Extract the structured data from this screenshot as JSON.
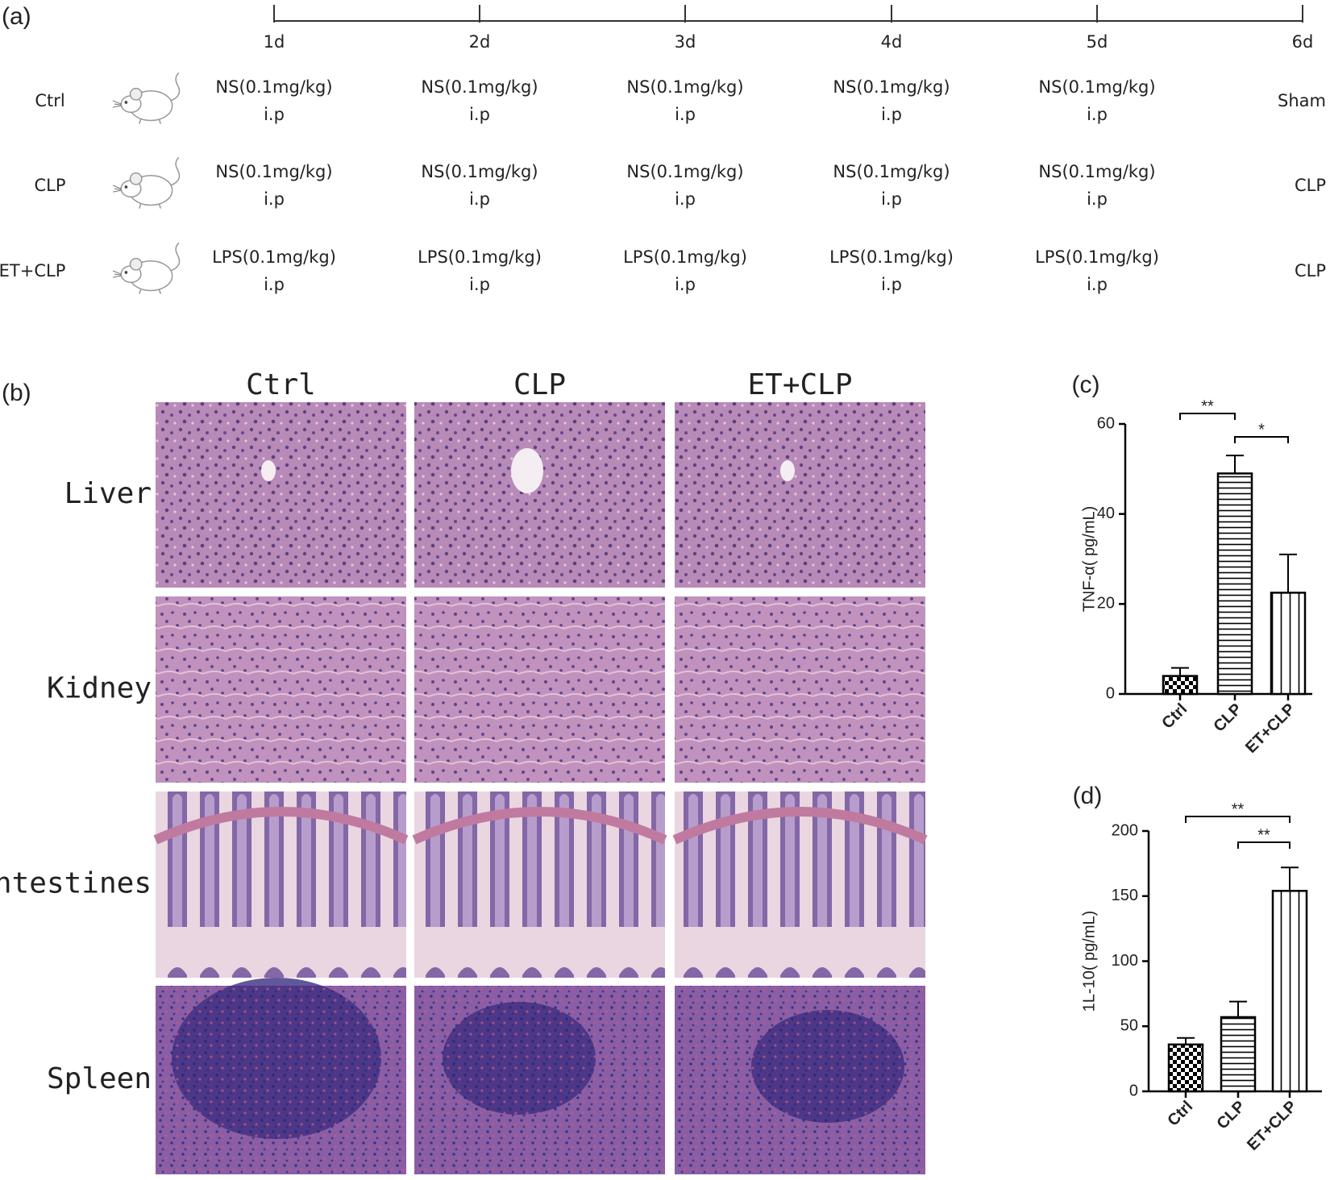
{
  "panel_a": {
    "label": "(a)",
    "days": [
      "1d",
      "2d",
      "3d",
      "4d",
      "5d",
      "6d"
    ],
    "groups": [
      {
        "name": "Ctrl",
        "doses": [
          "NS(0.1mg/kg)",
          "NS(0.1mg/kg)",
          "NS(0.1mg/kg)",
          "NS(0.1mg/kg)",
          "NS(0.1mg/kg)"
        ],
        "routes": [
          "i.p",
          "i.p",
          "i.p",
          "i.p",
          "i.p"
        ],
        "final": "Sham"
      },
      {
        "name": "CLP",
        "doses": [
          "NS(0.1mg/kg)",
          "NS(0.1mg/kg)",
          "NS(0.1mg/kg)",
          "NS(0.1mg/kg)",
          "NS(0.1mg/kg)"
        ],
        "routes": [
          "i.p",
          "i.p",
          "i.p",
          "i.p",
          "i.p"
        ],
        "final": "CLP"
      },
      {
        "name": "ET+CLP",
        "doses": [
          "LPS(0.1mg/kg)",
          "LPS(0.1mg/kg)",
          "LPS(0.1mg/kg)",
          "LPS(0.1mg/kg)",
          "LPS(0.1mg/kg)"
        ],
        "routes": [
          "i.p",
          "i.p",
          "i.p",
          "i.p",
          "i.p"
        ],
        "final": "CLP"
      }
    ]
  },
  "panel_b": {
    "label": "(b)",
    "columns": [
      "Ctrl",
      "CLP",
      "ET+CLP"
    ],
    "rows": [
      "Liver",
      "Kidney",
      "Intestines",
      "Spleen"
    ]
  },
  "chart_data": [
    {
      "type": "bar",
      "panel": "(c)",
      "ylabel": "TNF-α( pg/mL)",
      "categories": [
        "Ctrl",
        "CLP",
        "ET+CLP"
      ],
      "values": [
        4,
        49,
        22.5
      ],
      "errors": [
        1.8,
        4,
        8.5
      ],
      "color": "#000000",
      "patterns": [
        "checker",
        "horizontal",
        "vertical"
      ],
      "ylim": [
        0,
        60
      ],
      "yticks": [
        0,
        20,
        40,
        60
      ],
      "annotations": [
        {
          "text": "**",
          "pair": [
            0,
            1
          ]
        },
        {
          "text": "*",
          "pair": [
            1,
            2
          ]
        }
      ]
    },
    {
      "type": "bar",
      "panel": "(d)",
      "ylabel": "1L-10( pg/mL)",
      "categories": [
        "Ctrl",
        "CLP",
        "ET+CLP"
      ],
      "values": [
        36,
        57,
        154
      ],
      "errors": [
        5,
        12,
        18
      ],
      "color": "#000000",
      "patterns": [
        "checker",
        "horizontal",
        "vertical"
      ],
      "ylim": [
        0,
        200
      ],
      "yticks": [
        0,
        50,
        100,
        150,
        200
      ],
      "annotations": [
        {
          "text": "**",
          "pair": [
            0,
            2
          ]
        },
        {
          "text": "**",
          "pair": [
            1,
            2
          ]
        }
      ]
    }
  ]
}
